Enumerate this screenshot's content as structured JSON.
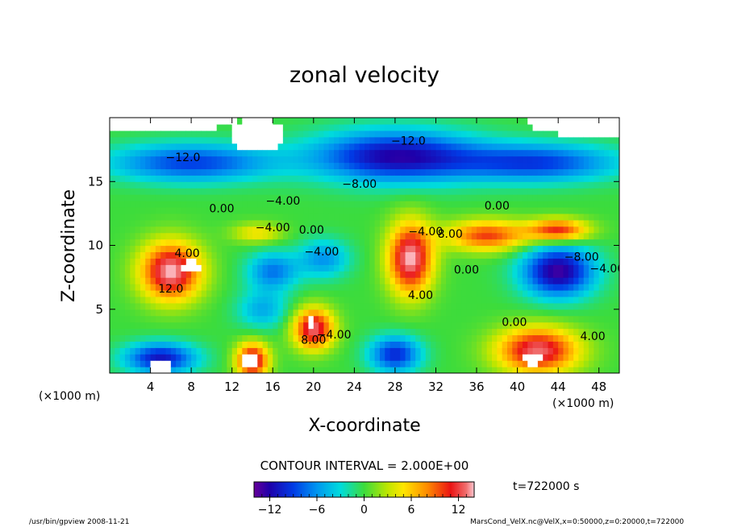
{
  "chart_data": {
    "type": "heatmap",
    "title": "zonal velocity",
    "xlabel": "X-coordinate",
    "ylabel": "Z-coordinate",
    "x_unit": "(×1000 m)",
    "y_unit": "(×1000 m)",
    "xlim": [
      0,
      50
    ],
    "ylim": [
      0,
      20
    ],
    "x_ticks": [
      4,
      8,
      12,
      16,
      20,
      24,
      28,
      32,
      36,
      40,
      44,
      48
    ],
    "y_ticks": [
      5,
      10,
      15
    ],
    "contour_interval_text": "CONTOUR INTERVAL = 2.000E+00",
    "time_text": "t=722000 s",
    "colorbar": {
      "range": [
        -14,
        14
      ],
      "tick_values": [
        -12,
        -6,
        0,
        6,
        12
      ],
      "tick_labels": [
        "−12",
        "−6",
        "0",
        "6",
        "12"
      ]
    },
    "contour_labels": [
      {
        "text": "−12.0",
        "x": 29.3,
        "y": 17.9
      },
      {
        "text": "−12.0",
        "x": 7.2,
        "y": 16.6
      },
      {
        "text": "−8.00",
        "x": 24.5,
        "y": 14.5
      },
      {
        "text": "−4.00",
        "x": 17.0,
        "y": 13.2
      },
      {
        "text": "0.00",
        "x": 11.0,
        "y": 12.6
      },
      {
        "text": "−4.00",
        "x": 16.0,
        "y": 11.1
      },
      {
        "text": "0.00",
        "x": 19.8,
        "y": 10.9
      },
      {
        "text": "−4.00",
        "x": 20.8,
        "y": 9.2
      },
      {
        "text": "4.00",
        "x": 7.6,
        "y": 9.1
      },
      {
        "text": "12.0",
        "x": 6.0,
        "y": 6.3
      },
      {
        "text": "−4.00",
        "x": 31.0,
        "y": 10.8
      },
      {
        "text": "8.00",
        "x": 33.4,
        "y": 10.6
      },
      {
        "text": "0.00",
        "x": 38.0,
        "y": 12.8
      },
      {
        "text": "0.00",
        "x": 35.0,
        "y": 7.8
      },
      {
        "text": "4.00",
        "x": 30.5,
        "y": 5.8
      },
      {
        "text": "−8.00",
        "x": 46.3,
        "y": 8.8
      },
      {
        "text": "−4.00",
        "x": 48.8,
        "y": 7.9
      },
      {
        "text": "−4.00",
        "x": 22.0,
        "y": 2.7
      },
      {
        "text": "8.00",
        "x": 20.0,
        "y": 2.3
      },
      {
        "text": "0.00",
        "x": 39.7,
        "y": 3.7
      },
      {
        "text": "4.00",
        "x": 47.4,
        "y": 2.6
      }
    ],
    "field": {
      "background": 0,
      "blobs": [
        {
          "x": 6,
          "y": 8,
          "sx": 3.0,
          "sy": 2.3,
          "a": 14
        },
        {
          "x": 29.5,
          "y": 9,
          "sx": 2.2,
          "sy": 2.8,
          "a": 14
        },
        {
          "x": 20,
          "y": 3.5,
          "sx": 2.0,
          "sy": 1.6,
          "a": 13
        },
        {
          "x": 14,
          "y": 1,
          "sx": 1.6,
          "sy": 1.4,
          "a": 13
        },
        {
          "x": 42,
          "y": 1.8,
          "sx": 4.0,
          "sy": 1.8,
          "a": 13
        },
        {
          "x": 37,
          "y": 10.8,
          "sx": 4.0,
          "sy": 1.2,
          "a": 10
        },
        {
          "x": 44,
          "y": 11.2,
          "sx": 3.0,
          "sy": 0.9,
          "a": 11
        },
        {
          "x": 14.5,
          "y": 11.0,
          "sx": 2.5,
          "sy": 0.8,
          "a": 5
        },
        {
          "x": 44,
          "y": 8,
          "sx": 3.5,
          "sy": 2.0,
          "a": -13
        },
        {
          "x": 16,
          "y": 8,
          "sx": 2.5,
          "sy": 1.5,
          "a": -7
        },
        {
          "x": 21,
          "y": 9,
          "sx": 2.5,
          "sy": 1.5,
          "a": -6
        },
        {
          "x": 5,
          "y": 1.2,
          "sx": 3.5,
          "sy": 1.2,
          "a": -11
        },
        {
          "x": 28,
          "y": 1.5,
          "sx": 2.5,
          "sy": 1.4,
          "a": -10
        },
        {
          "x": 15,
          "y": 5,
          "sx": 2.5,
          "sy": 1.5,
          "a": -5
        },
        {
          "x": 28,
          "y": 17,
          "sx": 8.0,
          "sy": 2.0,
          "a": -12
        },
        {
          "x": 8,
          "y": 16.5,
          "sx": 8.0,
          "sy": 1.5,
          "a": -9
        },
        {
          "x": 42,
          "y": 16.5,
          "sx": 8.0,
          "sy": 1.5,
          "a": -9
        }
      ],
      "blank_regions": [
        {
          "x": 14.5,
          "y": 18.7,
          "sx": 2.6,
          "sy": 1.3
        },
        {
          "x": 48,
          "y": 19.8,
          "sx": 7.0,
          "sy": 1.3
        },
        {
          "x": 5,
          "y": 20.3,
          "sx": 8.0,
          "sy": 1.5
        },
        {
          "x": 28,
          "y": 20.6,
          "sx": 7.0,
          "sy": 0.8
        },
        {
          "x": 19.8,
          "y": 4.0,
          "sx": 0.5,
          "sy": 0.45
        },
        {
          "x": 13.8,
          "y": 1.0,
          "sx": 0.9,
          "sy": 0.6
        },
        {
          "x": 41.5,
          "y": 1.2,
          "sx": 0.9,
          "sy": 0.5
        },
        {
          "x": 8.0,
          "y": 8.3,
          "sx": 0.8,
          "sy": 0.5
        },
        {
          "x": 5.0,
          "y": 0.4,
          "sx": 1.2,
          "sy": 0.5
        }
      ]
    }
  },
  "footer": {
    "left": "/usr/bin/gpview  2008-11-21",
    "right": "MarsCond_VelX.nc@VelX,x=0:50000,z=0:20000,t=722000"
  }
}
